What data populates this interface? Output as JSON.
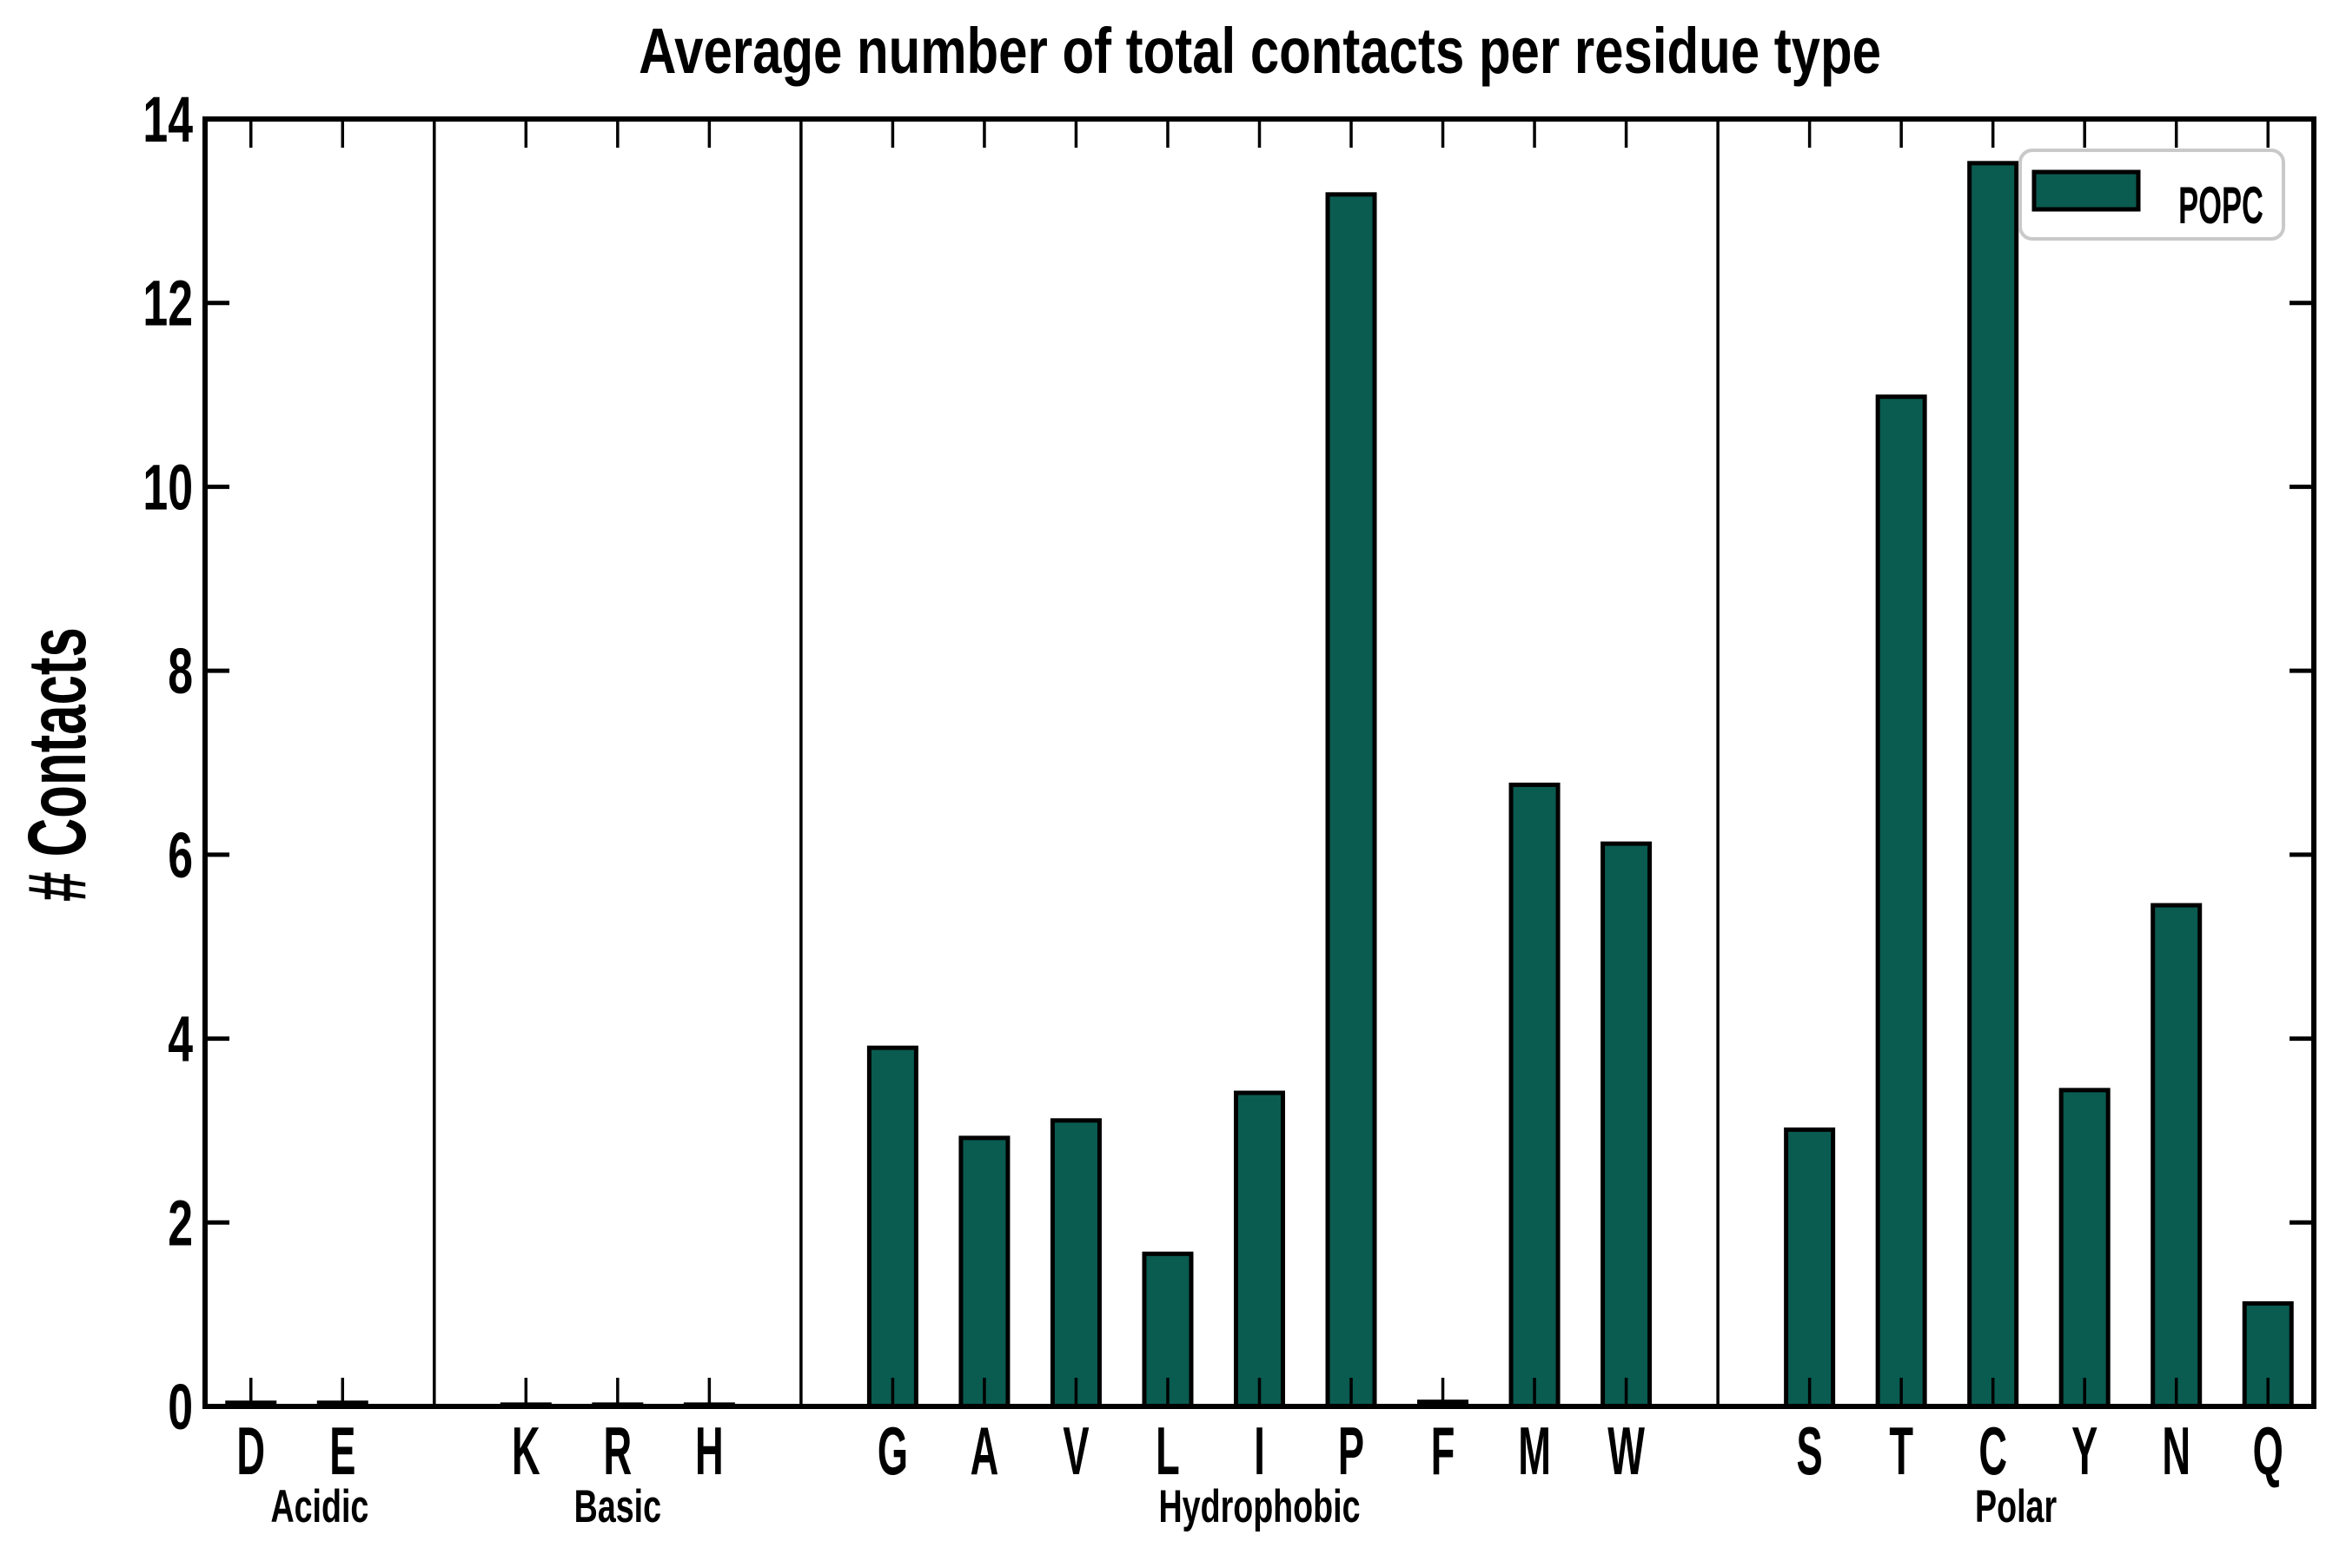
{
  "chart_data": {
    "type": "bar",
    "title": "Average number of total contacts per residue type",
    "ylabel": "# Contacts",
    "xlabel": "",
    "ylim": [
      0,
      14
    ],
    "ytick_major": [
      0,
      2,
      4,
      6,
      8,
      10,
      12,
      14
    ],
    "grid": false,
    "bar_color": "#0a5b50",
    "bar_edge_color": "#000000",
    "separator_color": "#000000",
    "legend": {
      "label": "POPC",
      "position": "upper right",
      "border_color": "#c9c9c9",
      "swatch_color": "#0a5b50"
    },
    "groups": [
      {
        "name": "Acidic",
        "categories": [
          "D",
          "E"
        ],
        "values": [
          0.04,
          0.04
        ]
      },
      {
        "name": "Basic",
        "categories": [
          "K",
          "R",
          "H"
        ],
        "values": [
          0.02,
          0.02,
          0.02
        ]
      },
      {
        "name": "Hydrophobic",
        "categories": [
          "G",
          "A",
          "V",
          "L",
          "I",
          "P",
          "F",
          "M",
          "W"
        ],
        "values": [
          3.9,
          2.92,
          3.11,
          1.66,
          3.41,
          13.18,
          0.05,
          6.76,
          6.12
        ]
      },
      {
        "name": "Polar",
        "categories": [
          "S",
          "T",
          "C",
          "Y",
          "N",
          "Q"
        ],
        "values": [
          3.01,
          10.98,
          13.52,
          3.44,
          5.45,
          1.12
        ]
      }
    ]
  }
}
